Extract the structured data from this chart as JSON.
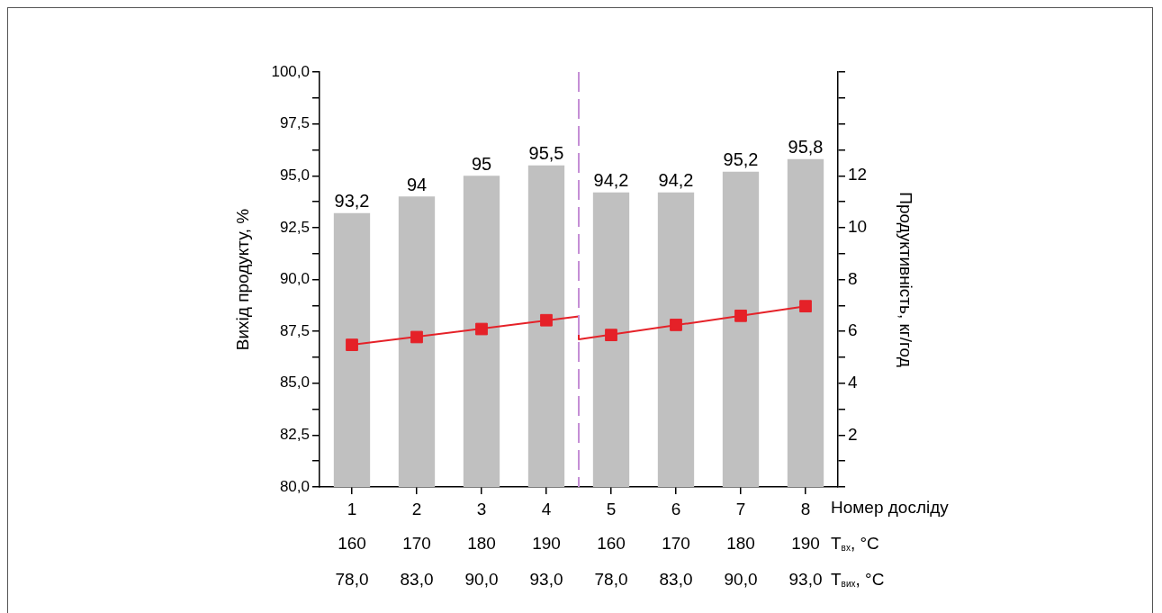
{
  "chart_data": {
    "type": "bar",
    "xlabel": "Номер досліду",
    "ylabel": "Вихід продукту, %",
    "y2label": "Продуктивність, кг/год",
    "x": [
      1,
      2,
      3,
      4,
      5,
      6,
      7,
      8
    ],
    "xlim": [
      0.5,
      8.5
    ],
    "xticks": [
      1,
      2,
      3,
      4,
      5,
      6,
      7,
      8
    ],
    "annotations": [
      "160",
      "170",
      "180",
      "190",
      "160",
      "170",
      "180",
      "190",
      "T$_{вх}$, °C",
      "78,0",
      "83,0",
      "90,0",
      "93,0",
      "78,0",
      "83,0",
      "90,0",
      "93,0",
      "T$_{вих}$, °C"
    ],
    "ylim": [
      80,
      100
    ],
    "yticks": [
      {
        "value": 80,
        "label": "80,0"
      },
      {
        "value": 81.25,
        "label": null
      },
      {
        "value": 82.5,
        "label": "82,5"
      },
      {
        "value": 83.75,
        "label": null
      },
      {
        "value": 85,
        "label": "85,0"
      },
      {
        "value": 86.25,
        "label": null
      },
      {
        "value": 87.5,
        "label": "87,5"
      },
      {
        "value": 88.75,
        "label": null
      },
      {
        "value": 90,
        "label": "90,0"
      },
      {
        "value": 91.25,
        "label": null
      },
      {
        "value": 92.5,
        "label": "92,5"
      },
      {
        "value": 93.75,
        "label": null
      },
      {
        "value": 95,
        "label": "95,0"
      },
      {
        "value": 96.25,
        "label": null
      },
      {
        "value": 97.5,
        "label": "97,5"
      },
      {
        "value": 98.75,
        "label": null
      },
      {
        "value": 100,
        "label": "100,0"
      }
    ],
    "y2lim": [
      0,
      16
    ],
    "y2ticks": [
      {
        "value": 0,
        "label": null
      },
      {
        "value": 1,
        "label": null
      },
      2,
      {
        "value": 3,
        "label": null
      },
      4,
      {
        "value": 5,
        "label": null
      },
      6,
      {
        "value": 7,
        "label": null
      },
      8,
      {
        "value": 9,
        "label": null
      },
      10,
      {
        "value": 11,
        "label": null
      },
      12,
      {
        "value": 13,
        "label": null
      },
      {
        "value": 14,
        "label": null
      },
      {
        "value": 15,
        "label": null
      },
      {
        "value": 16,
        "label": null
      }
    ],
    "series": [
      {
        "color": "#c0c0c0",
        "values": [
          93.2,
          94,
          95,
          95.5,
          94.2,
          94.2,
          95.2,
          95.8
        ],
        "value_labels": [
          "93,2",
          "94",
          "95",
          "95,5",
          "94,2",
          "94,2",
          "95,2",
          "95,8"
        ]
      },
      {
        "type": "line",
        "axis": "y2",
        "color": "#e52128",
        "x": [
          1,
          4.5,
          4.5,
          8
        ],
        "values": [
          5.48,
          6.58,
          5.69,
          6.97
        ],
        "marker": "none",
        "line_style": "solid"
      },
      {
        "type": "scatter",
        "axis": "y2",
        "color": "#e52128",
        "values": [
          5.48,
          5.78,
          6.09,
          6.43,
          5.86,
          6.25,
          6.6,
          6.97
        ],
        "marker": "square"
      }
    ],
    "ref_lines": [
      {
        "axis": "x",
        "value": 4.5,
        "label": null,
        "color": "#c58fd6",
        "line_style": "dashed"
      }
    ]
  }
}
